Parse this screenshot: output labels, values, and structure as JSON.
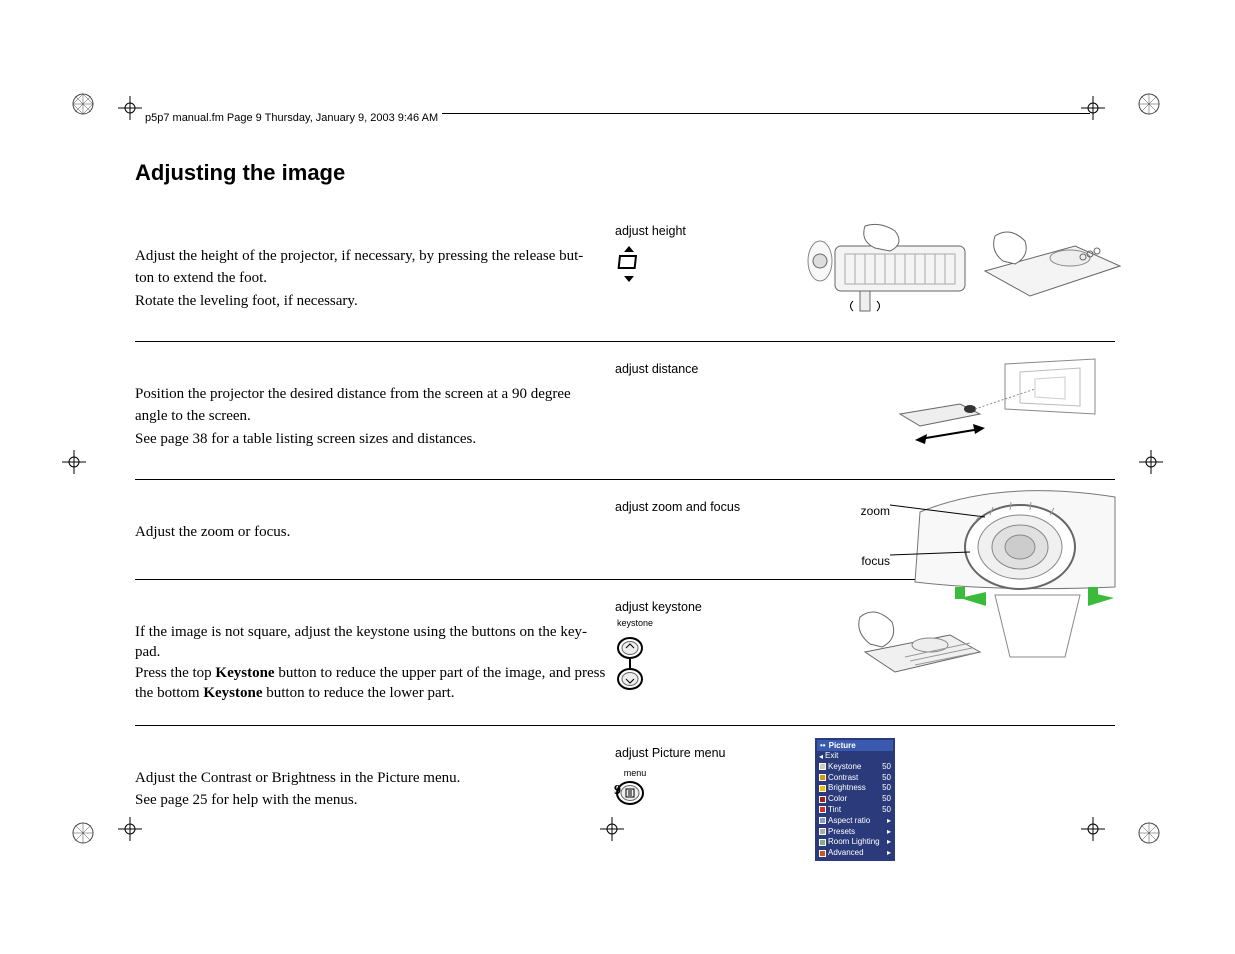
{
  "header": "p5p7 manual.fm  Page 9  Thursday, January 9, 2003  9:46 AM",
  "title": "Adjusting the image",
  "page_number": "9",
  "rows": [
    {
      "text_lines": [
        "Adjust the height of the projector, if necessary, by pressing the release but-",
        "ton to extend the foot.",
        "Rotate the leveling foot, if necessary."
      ],
      "label": "adjust height",
      "icon": "height-arrows"
    },
    {
      "text_lines": [
        "Position the projector the desired distance from the screen at a 90 degree",
        "angle to the screen.",
        "See page 38 for a table listing screen sizes and distances."
      ],
      "label": "adjust distance",
      "icon": null
    },
    {
      "text_lines": [
        "Adjust the zoom or focus."
      ],
      "label": "adjust zoom and focus",
      "zoom_label": "zoom",
      "focus_label": "focus",
      "icon": null
    },
    {
      "text_html": "If the image is not square, adjust the keystone using the buttons on the key-<br>pad.<br>Press the top <b>Keystone</b> button to reduce the upper part of the image, and press the bottom <b>Keystone</b> button to reduce the lower part.",
      "label": "adjust keystone",
      "icon_caption": "keystone",
      "icon": "keystone-buttons"
    },
    {
      "text_lines": [
        "Adjust the Contrast or Brightness in the Picture menu.",
        "See page 25 for help with the menus."
      ],
      "label": "adjust Picture menu",
      "icon_caption": "menu",
      "icon": "menu-button"
    }
  ],
  "picture_menu": {
    "title": "Picture",
    "items": [
      {
        "label": "Exit",
        "val": "",
        "ic": "#ffffff"
      },
      {
        "label": "Keystone",
        "val": "50",
        "ic": "#cccccc"
      },
      {
        "label": "Contrast",
        "val": "50",
        "ic": "#d49a00"
      },
      {
        "label": "Brightness",
        "val": "50",
        "ic": "#f0c000"
      },
      {
        "label": "Color",
        "val": "50",
        "ic": "#a02020"
      },
      {
        "label": "Tint",
        "val": "50",
        "ic": "#d03030"
      },
      {
        "label": "Aspect ratio",
        "val": "▸",
        "ic": "#8899cc"
      },
      {
        "label": "Presets",
        "val": "▸",
        "ic": "#aaaaaa"
      },
      {
        "label": "Room Lighting",
        "val": "▸",
        "ic": "#88aa88"
      },
      {
        "label": "Advanced",
        "val": "▸",
        "ic": "#c45a20"
      }
    ]
  },
  "colors": {
    "menu_bg": "#2a3a7a",
    "menu_title_bg": "#3a5ab0",
    "arrow_green": "#3bbb3b"
  }
}
